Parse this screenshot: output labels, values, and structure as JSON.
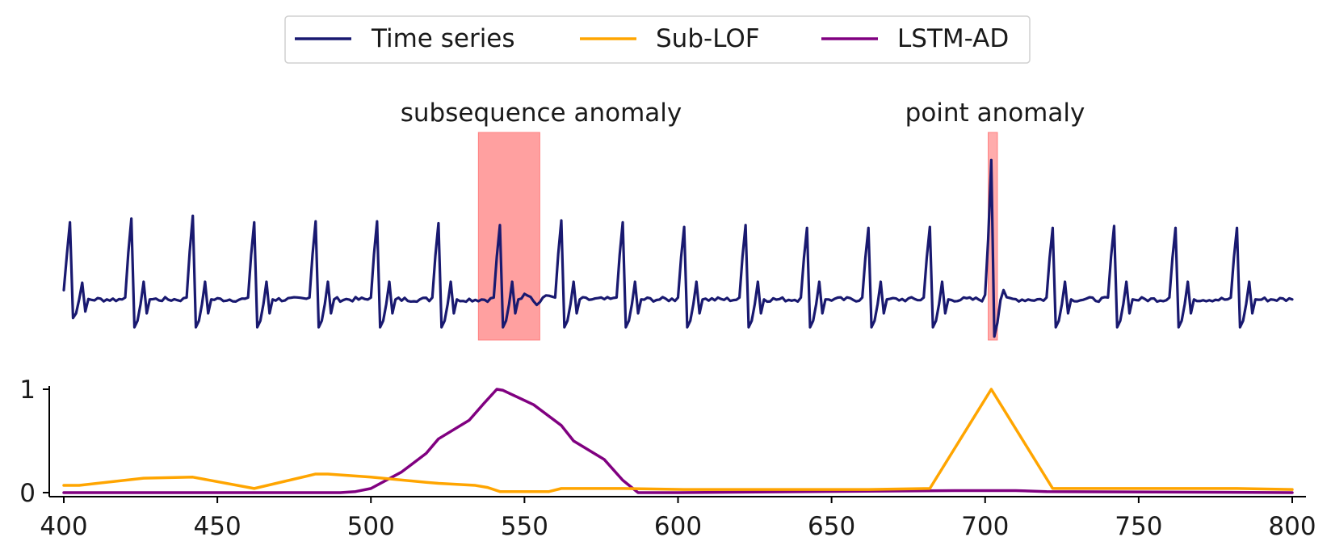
{
  "chart_data": {
    "type": "line",
    "legend": {
      "placement": "top-center",
      "entries": [
        {
          "label": "Time series",
          "color": "#191970"
        },
        {
          "label": "Sub-LOF",
          "color": "#FFA500"
        },
        {
          "label": "LSTM-AD",
          "color": "#800080"
        }
      ]
    },
    "annotations": [
      {
        "label": "subsequence anomaly",
        "x_range": [
          535,
          555
        ],
        "color": "#ff8080"
      },
      {
        "label": "point anomaly",
        "x_range": [
          701,
          704
        ],
        "color": "#ff8080"
      }
    ],
    "top_panel": {
      "series_name": "Time series",
      "color": "#191970",
      "y_axis_visible": false,
      "x_range": [
        400,
        800
      ],
      "beat_period": 20,
      "beat_phases": [
        2,
        2,
        2,
        2,
        2,
        2,
        2,
        2,
        2,
        2,
        2,
        2,
        2,
        2,
        2,
        2,
        2,
        2,
        2,
        2
      ],
      "beat_peaks": [
        0.78,
        0.82,
        0.85,
        0.78,
        0.79,
        0.79,
        0.77,
        0.75,
        0.8,
        0.78,
        0.73,
        0.75,
        0.72,
        0.72,
        0.73,
        1.45,
        0.72,
        0.74,
        0.72,
        0.72
      ],
      "subsequence_anomaly_beat": 7,
      "point_anomaly": {
        "x": 702,
        "y": 1.45
      }
    },
    "bottom_panel": {
      "x_range": [
        400,
        800
      ],
      "ylim": [
        0,
        1
      ],
      "yticks": [
        "0",
        "1"
      ],
      "xticks": [
        "400",
        "450",
        "500",
        "550",
        "600",
        "650",
        "700",
        "750",
        "800"
      ],
      "series": [
        {
          "name": "Sub-LOF",
          "color": "#FFA500",
          "points": [
            [
              400,
              0.07
            ],
            [
              405,
              0.07
            ],
            [
              426,
              0.14
            ],
            [
              442,
              0.15
            ],
            [
              462,
              0.04
            ],
            [
              482,
              0.18
            ],
            [
              486,
              0.18
            ],
            [
              500,
              0.15
            ],
            [
              518,
              0.1
            ],
            [
              522,
              0.09
            ],
            [
              534,
              0.07
            ],
            [
              538,
              0.05
            ],
            [
              542,
              0.01
            ],
            [
              558,
              0.01
            ],
            [
              562,
              0.04
            ],
            [
              582,
              0.04
            ],
            [
              602,
              0.03
            ],
            [
              622,
              0.03
            ],
            [
              662,
              0.03
            ],
            [
              682,
              0.04
            ],
            [
              702,
              1.0
            ],
            [
              722,
              0.04
            ],
            [
              742,
              0.04
            ],
            [
              762,
              0.04
            ],
            [
              782,
              0.04
            ],
            [
              800,
              0.03
            ]
          ]
        },
        {
          "name": "LSTM-AD",
          "color": "#800080",
          "points": [
            [
              400,
              0.0
            ],
            [
              490,
              0.0
            ],
            [
              495,
              0.01
            ],
            [
              500,
              0.04
            ],
            [
              510,
              0.2
            ],
            [
              518,
              0.38
            ],
            [
              522,
              0.52
            ],
            [
              532,
              0.7
            ],
            [
              537,
              0.87
            ],
            [
              541,
              1.0
            ],
            [
              543,
              0.99
            ],
            [
              553,
              0.85
            ],
            [
              562,
              0.65
            ],
            [
              566,
              0.5
            ],
            [
              576,
              0.32
            ],
            [
              582,
              0.12
            ],
            [
              587,
              0.0
            ],
            [
              600,
              0.0
            ],
            [
              690,
              0.02
            ],
            [
              710,
              0.02
            ],
            [
              720,
              0.01
            ],
            [
              800,
              0.0
            ]
          ]
        }
      ]
    }
  }
}
